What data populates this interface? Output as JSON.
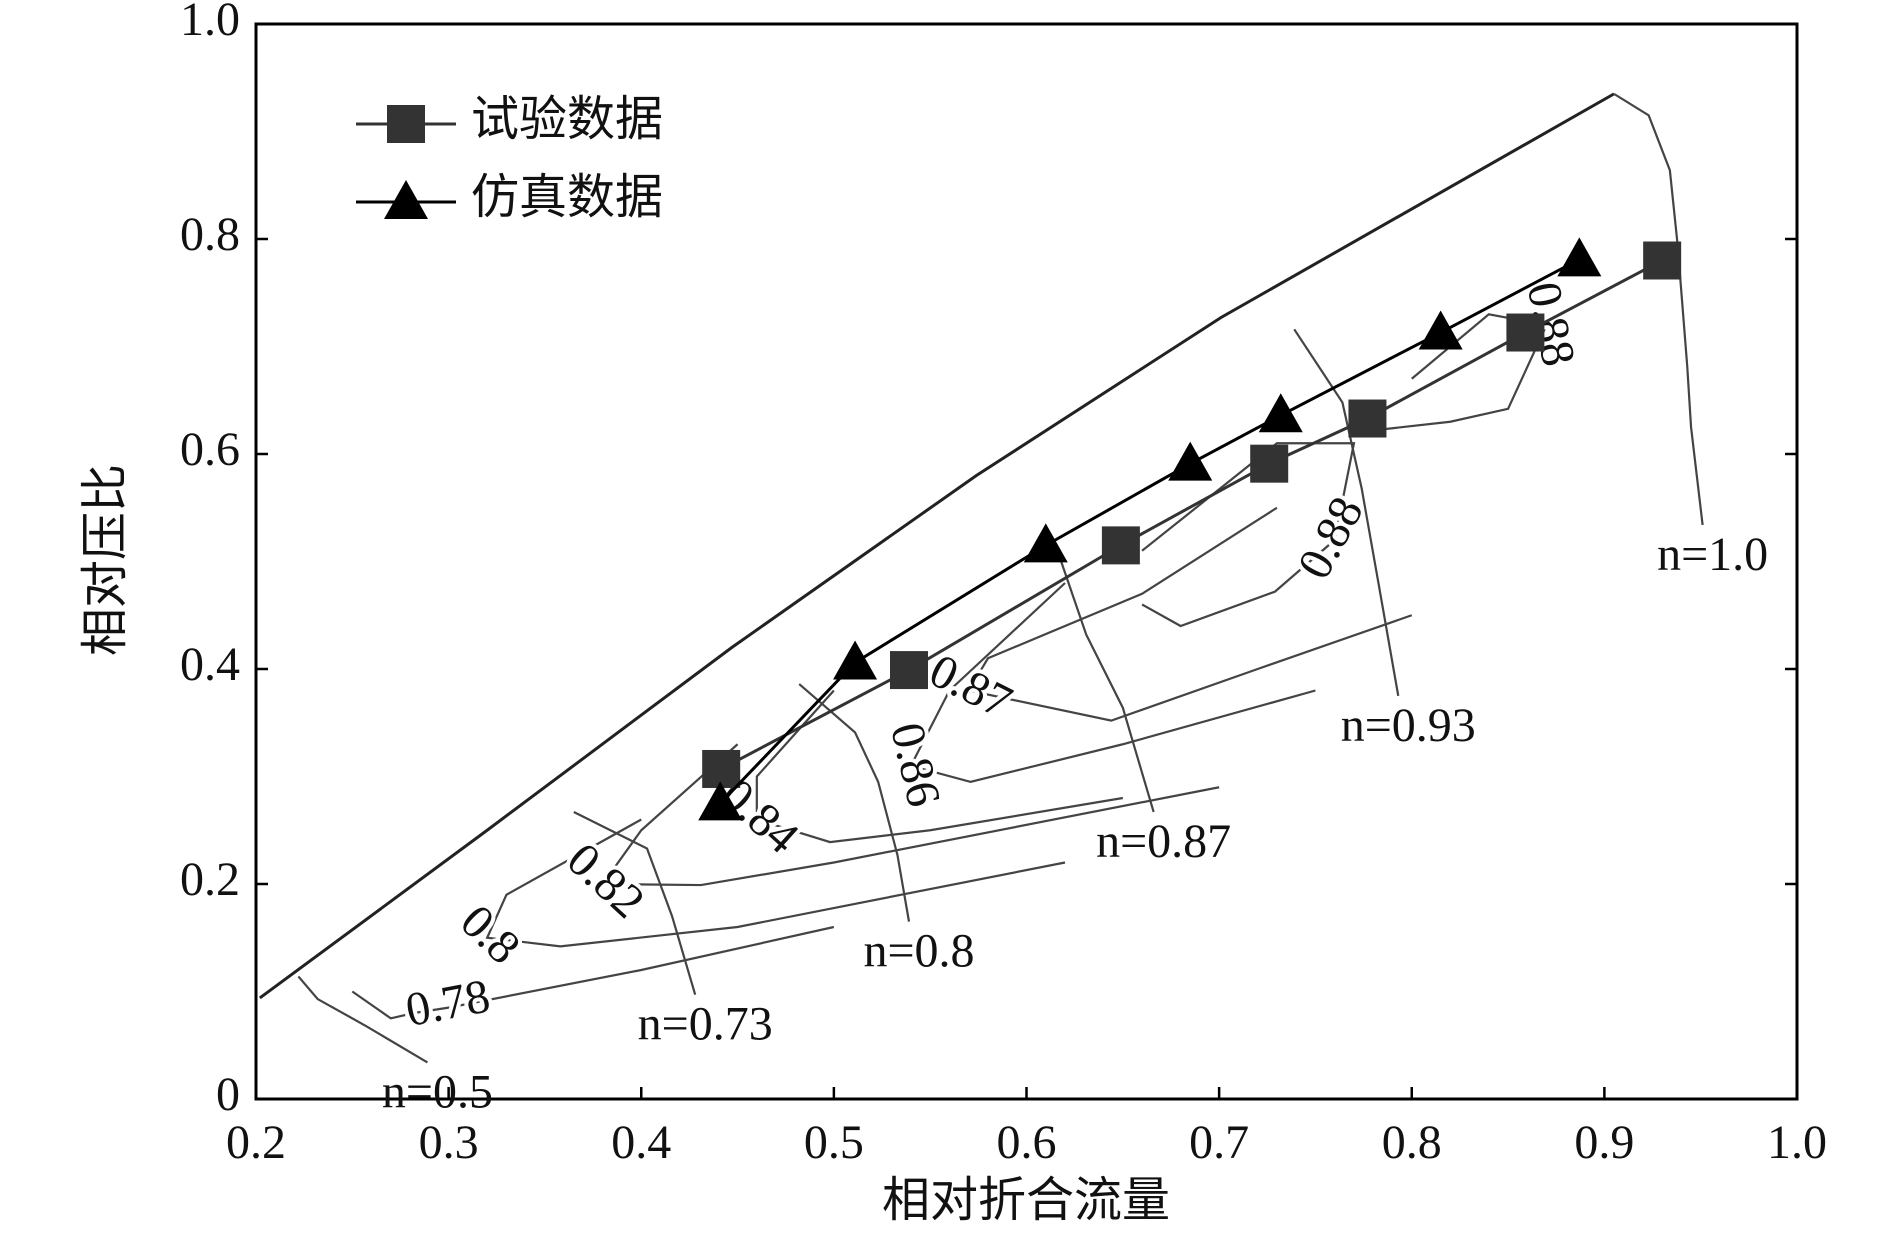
{
  "chart_data": {
    "type": "line",
    "x_label": "相对折合流量",
    "y_label": "相对压比",
    "xlim": [
      0.2,
      1.0
    ],
    "xticks": [
      0.2,
      0.3,
      0.4,
      0.5,
      0.6,
      0.7,
      0.8,
      0.9,
      {
        "value": 1.0,
        "label": "1.0"
      }
    ],
    "ylim": [
      0,
      1.0
    ],
    "yticks": [
      0,
      0.2,
      0.4,
      0.6,
      0.8,
      {
        "value": 1.0,
        "label": "1.0"
      }
    ],
    "legend": "upper left",
    "series": [
      {
        "name": "试验数据",
        "color": "#333333",
        "marker": "square",
        "x": [
          0.4415,
          0.539,
          0.649,
          0.726,
          0.777,
          0.859,
          0.93
        ],
        "values": [
          0.307,
          0.399,
          0.515,
          0.591,
          0.633,
          0.713,
          0.78
        ]
      },
      {
        "name": "仿真数据",
        "color": "#000000",
        "marker": "triangle",
        "x": [
          0.441,
          0.511,
          0.61,
          0.685,
          0.732,
          0.815,
          0.887
        ],
        "values": [
          0.275,
          0.406,
          0.515,
          0.591,
          0.636,
          0.713,
          0.781
        ]
      }
    ],
    "surge_line": {
      "x": [
        0.202,
        0.32,
        0.447,
        0.574,
        0.701,
        0.905
      ],
      "y": [
        0.094,
        0.25,
        0.42,
        0.58,
        0.727,
        0.935
      ]
    },
    "speed_lines": [
      {
        "label": "n=0.5",
        "x": [
          0.222,
          0.232,
          0.257,
          0.289
        ],
        "y": [
          0.114,
          0.093,
          0.068,
          0.034
        ]
      },
      {
        "label": "n=0.73",
        "x": [
          0.365,
          0.403,
          0.416,
          0.428
        ],
        "y": [
          0.267,
          0.233,
          0.17,
          0.097
        ]
      },
      {
        "label": "n=0.8",
        "x": [
          0.482,
          0.511,
          0.523,
          0.533,
          0.539
        ],
        "y": [
          0.386,
          0.341,
          0.295,
          0.227,
          0.165
        ]
      },
      {
        "label": "n=0.87",
        "x": [
          0.618,
          0.631,
          0.65,
          0.666
        ],
        "y": [
          0.5,
          0.432,
          0.364,
          0.267
        ]
      },
      {
        "label": "n=0.93",
        "x": [
          0.739,
          0.764,
          0.774,
          0.783,
          0.793
        ],
        "y": [
          0.716,
          0.648,
          0.568,
          0.477,
          0.375
        ]
      },
      {
        "label": "n=1.0",
        "x": [
          0.905,
          0.923,
          0.934,
          0.938,
          0.943,
          0.945,
          0.951
        ],
        "y": [
          0.935,
          0.915,
          0.864,
          0.795,
          0.682,
          0.625,
          0.534
        ]
      }
    ],
    "efficiency_contours": [
      {
        "label": "0.78",
        "x": [
          0.25,
          0.27,
          0.282,
          0.3,
          0.4,
          0.5
        ],
        "y": [
          0.1,
          0.075,
          0.08,
          0.085,
          0.12,
          0.16
        ]
      },
      {
        "label": "0.8",
        "x": [
          0.62,
          0.45,
          0.358,
          0.32,
          0.33,
          0.4
        ],
        "y": [
          0.22,
          0.16,
          0.142,
          0.15,
          0.19,
          0.26
        ]
      },
      {
        "label": "0.82",
        "x": [
          0.7,
          0.5,
          0.431,
          0.38,
          0.4,
          0.45
        ],
        "y": [
          0.29,
          0.22,
          0.199,
          0.2,
          0.25,
          0.33
        ]
      },
      {
        "label": "0.84",
        "x": [
          0.65,
          0.55,
          0.498,
          0.46,
          0.46,
          0.5
        ],
        "y": [
          0.28,
          0.25,
          0.239,
          0.26,
          0.3,
          0.38
        ]
      },
      {
        "label": "0.86",
        "x": [
          0.75,
          0.65,
          0.571,
          0.54,
          0.56,
          0.62
        ],
        "y": [
          0.38,
          0.33,
          0.295,
          0.31,
          0.38,
          0.48
        ]
      },
      {
        "label": "0.87",
        "x": [
          0.8,
          0.72,
          0.644,
          0.57,
          0.58,
          0.66,
          0.73
        ],
        "y": [
          0.45,
          0.4,
          0.352,
          0.38,
          0.41,
          0.47,
          0.55
        ]
      },
      {
        "label": "0.88",
        "x": [
          0.66,
          0.68,
          0.729,
          0.76,
          0.77,
          0.73,
          0.66
        ],
        "y": [
          0.46,
          0.44,
          0.472,
          0.52,
          0.61,
          0.61,
          0.51
        ]
      },
      {
        "label": "0.88",
        "x": [
          0.77,
          0.82,
          0.85,
          0.87,
          0.84,
          0.8
        ],
        "y": [
          0.62,
          0.63,
          0.642,
          0.72,
          0.73,
          0.67
        ]
      }
    ]
  }
}
